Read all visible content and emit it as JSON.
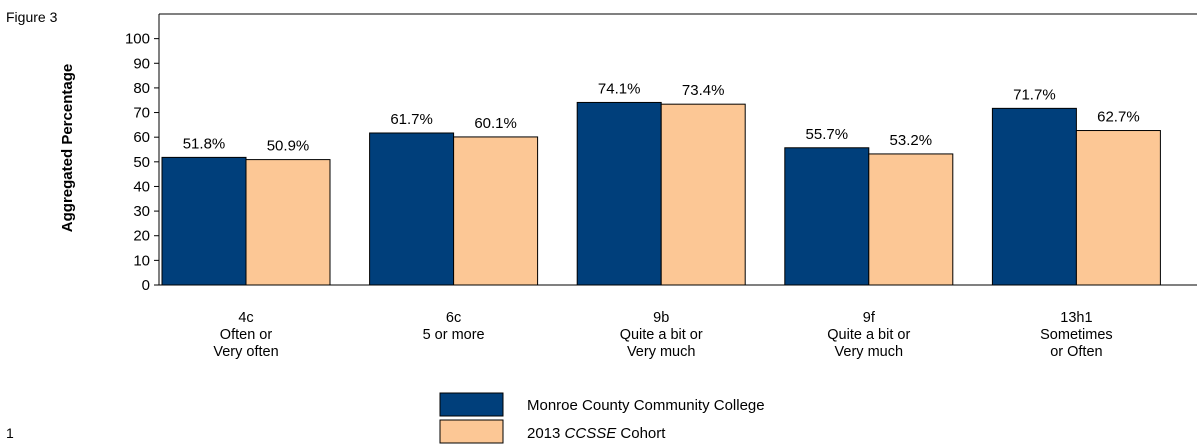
{
  "figure_label": "Figure 3",
  "page_number": "1",
  "colors": {
    "series1": "#003f7b",
    "series2": "#fcc795",
    "axis": "#000000"
  },
  "chart_data": {
    "type": "bar",
    "title": "",
    "ylabel": "Aggregated Percentage",
    "xlabel": "",
    "ylim": [
      0,
      110
    ],
    "yticks": [
      0,
      10,
      20,
      30,
      40,
      50,
      60,
      70,
      80,
      90,
      100
    ],
    "categories": [
      [
        "4c",
        "Often or",
        "Very often"
      ],
      [
        "6c",
        "5 or more"
      ],
      [
        "9b",
        "Quite a bit or",
        "Very much"
      ],
      [
        "9f",
        "Quite a bit or",
        "Very much"
      ],
      [
        "13h1",
        "Sometimes",
        "or Often"
      ]
    ],
    "series": [
      {
        "name": "Monroe County Community College",
        "values": [
          51.8,
          61.7,
          74.1,
          55.7,
          71.7
        ],
        "labels": [
          "51.8%",
          "61.7%",
          "74.1%",
          "55.7%",
          "71.7%"
        ]
      },
      {
        "name": "2013 CCSSE Cohort",
        "name_prefix": "2013 ",
        "name_italic": "CCSSE",
        "name_suffix": " Cohort",
        "values": [
          50.9,
          60.1,
          73.4,
          53.2,
          62.7
        ],
        "labels": [
          "50.9%",
          "60.1%",
          "73.4%",
          "53.2%",
          "62.7%"
        ]
      }
    ],
    "grid": false,
    "legend_position": "bottom"
  }
}
